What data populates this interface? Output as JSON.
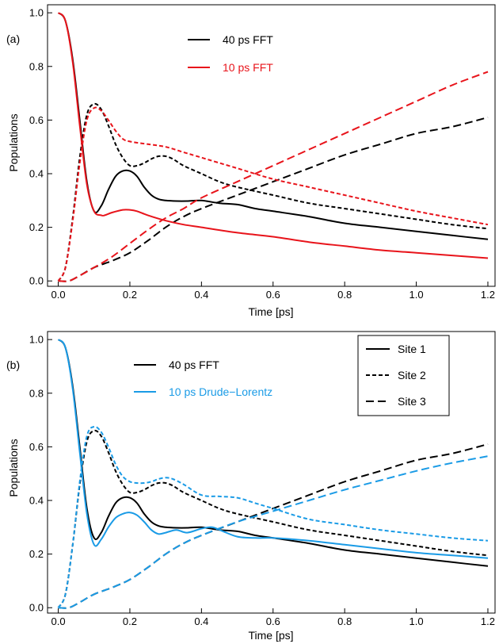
{
  "chart_data": [
    {
      "type": "line",
      "panel_label": "(a)",
      "xlabel": "Time [ps]",
      "ylabel": "Populations",
      "xlim": [
        -0.03,
        1.22
      ],
      "ylim": [
        -0.02,
        1.03
      ],
      "xticks": [
        0.0,
        0.2,
        0.4,
        0.6,
        0.8,
        1.0,
        1.2
      ],
      "yticks": [
        0.0,
        0.2,
        0.4,
        0.6,
        0.8,
        1.0
      ],
      "grid": false,
      "legend": {
        "placement": "top-center",
        "entries": [
          {
            "label": "40 ps FFT",
            "color": "#000000"
          },
          {
            "label": "10 ps FFT",
            "color": "#e8141b"
          }
        ]
      },
      "series": [
        {
          "name": "40 ps FFT",
          "site": "Site 1",
          "color": "#000000",
          "dash": "solid",
          "x": [
            0,
            0.02,
            0.04,
            0.06,
            0.08,
            0.1,
            0.12,
            0.14,
            0.16,
            0.18,
            0.2,
            0.22,
            0.24,
            0.26,
            0.28,
            0.3,
            0.33,
            0.36,
            0.4,
            0.45,
            0.5,
            0.55,
            0.6,
            0.7,
            0.8,
            0.9,
            1.0,
            1.1,
            1.2
          ],
          "y": [
            1.0,
            0.97,
            0.83,
            0.6,
            0.37,
            0.26,
            0.28,
            0.34,
            0.39,
            0.41,
            0.41,
            0.39,
            0.35,
            0.32,
            0.305,
            0.3,
            0.298,
            0.298,
            0.3,
            0.29,
            0.285,
            0.27,
            0.26,
            0.24,
            0.215,
            0.2,
            0.185,
            0.17,
            0.155
          ]
        },
        {
          "name": "40 ps FFT",
          "site": "Site 2",
          "color": "#000000",
          "dash": "short",
          "x": [
            0,
            0.02,
            0.04,
            0.06,
            0.08,
            0.1,
            0.12,
            0.14,
            0.16,
            0.18,
            0.2,
            0.22,
            0.24,
            0.26,
            0.28,
            0.3,
            0.32,
            0.35,
            0.4,
            0.45,
            0.5,
            0.6,
            0.7,
            0.8,
            0.9,
            1.0,
            1.1,
            1.2
          ],
          "y": [
            0.0,
            0.05,
            0.23,
            0.46,
            0.62,
            0.66,
            0.64,
            0.58,
            0.51,
            0.46,
            0.43,
            0.43,
            0.44,
            0.455,
            0.465,
            0.465,
            0.455,
            0.43,
            0.4,
            0.37,
            0.35,
            0.32,
            0.29,
            0.27,
            0.25,
            0.23,
            0.21,
            0.195
          ]
        },
        {
          "name": "40 ps FFT",
          "site": "Site 3",
          "color": "#000000",
          "dash": "long",
          "x": [
            0,
            0.03,
            0.06,
            0.1,
            0.15,
            0.2,
            0.25,
            0.3,
            0.35,
            0.4,
            0.5,
            0.6,
            0.7,
            0.8,
            0.9,
            1.0,
            1.1,
            1.2
          ],
          "y": [
            0.0,
            0.0,
            0.02,
            0.05,
            0.075,
            0.105,
            0.15,
            0.2,
            0.24,
            0.27,
            0.32,
            0.37,
            0.42,
            0.47,
            0.51,
            0.55,
            0.575,
            0.61
          ]
        },
        {
          "name": "10 ps FFT",
          "site": "Site 1",
          "color": "#e8141b",
          "dash": "solid",
          "x": [
            0,
            0.02,
            0.04,
            0.06,
            0.08,
            0.1,
            0.12,
            0.13,
            0.15,
            0.18,
            0.2,
            0.22,
            0.25,
            0.3,
            0.35,
            0.4,
            0.5,
            0.6,
            0.7,
            0.8,
            0.9,
            1.0,
            1.1,
            1.2
          ],
          "y": [
            1.0,
            0.97,
            0.82,
            0.58,
            0.36,
            0.26,
            0.245,
            0.245,
            0.255,
            0.265,
            0.265,
            0.26,
            0.245,
            0.225,
            0.21,
            0.2,
            0.18,
            0.165,
            0.145,
            0.13,
            0.115,
            0.105,
            0.095,
            0.085
          ]
        },
        {
          "name": "10 ps FFT",
          "site": "Site 2",
          "color": "#e8141b",
          "dash": "short",
          "x": [
            0,
            0.02,
            0.04,
            0.06,
            0.08,
            0.1,
            0.12,
            0.14,
            0.16,
            0.18,
            0.2,
            0.25,
            0.3,
            0.35,
            0.4,
            0.5,
            0.6,
            0.7,
            0.8,
            0.9,
            1.0,
            1.1,
            1.2
          ],
          "y": [
            0.0,
            0.05,
            0.22,
            0.44,
            0.6,
            0.645,
            0.635,
            0.6,
            0.56,
            0.53,
            0.52,
            0.51,
            0.5,
            0.48,
            0.46,
            0.42,
            0.38,
            0.35,
            0.32,
            0.29,
            0.26,
            0.235,
            0.21
          ]
        },
        {
          "name": "10 ps FFT",
          "site": "Site 3",
          "color": "#e8141b",
          "dash": "long",
          "x": [
            0,
            0.03,
            0.06,
            0.1,
            0.15,
            0.2,
            0.25,
            0.3,
            0.35,
            0.4,
            0.5,
            0.6,
            0.7,
            0.8,
            0.9,
            1.0,
            1.1,
            1.2
          ],
          "y": [
            0.0,
            0.0,
            0.02,
            0.05,
            0.09,
            0.14,
            0.19,
            0.235,
            0.27,
            0.31,
            0.37,
            0.43,
            0.49,
            0.55,
            0.61,
            0.67,
            0.73,
            0.78
          ]
        }
      ]
    },
    {
      "type": "line",
      "panel_label": "(b)",
      "xlabel": "Time [ps]",
      "ylabel": "Populations",
      "xlim": [
        -0.03,
        1.22
      ],
      "ylim": [
        -0.02,
        1.03
      ],
      "xticks": [
        0.0,
        0.2,
        0.4,
        0.6,
        0.8,
        1.0,
        1.2
      ],
      "yticks": [
        0.0,
        0.2,
        0.4,
        0.6,
        0.8,
        1.0
      ],
      "grid": false,
      "legend": {
        "placement": "top-center",
        "entries": [
          {
            "label": "40 ps FFT",
            "color": "#000000"
          },
          {
            "label": "10 ps Drude−Lorentz",
            "color": "#1a9be6"
          }
        ]
      },
      "site_legend": {
        "placement": "top-right",
        "entries": [
          {
            "label": "Site 1",
            "dash": "solid"
          },
          {
            "label": "Site 2",
            "dash": "short"
          },
          {
            "label": "Site 3",
            "dash": "long"
          }
        ]
      },
      "series": [
        {
          "name": "40 ps FFT",
          "site": "Site 1",
          "color": "#000000",
          "dash": "solid",
          "x": [
            0,
            0.02,
            0.04,
            0.06,
            0.08,
            0.1,
            0.12,
            0.14,
            0.16,
            0.18,
            0.2,
            0.22,
            0.24,
            0.26,
            0.28,
            0.3,
            0.33,
            0.36,
            0.4,
            0.45,
            0.5,
            0.55,
            0.6,
            0.7,
            0.8,
            0.9,
            1.0,
            1.1,
            1.2
          ],
          "y": [
            1.0,
            0.97,
            0.83,
            0.6,
            0.37,
            0.26,
            0.28,
            0.34,
            0.39,
            0.41,
            0.41,
            0.39,
            0.35,
            0.32,
            0.305,
            0.3,
            0.298,
            0.298,
            0.3,
            0.29,
            0.285,
            0.27,
            0.26,
            0.24,
            0.215,
            0.2,
            0.185,
            0.17,
            0.155
          ]
        },
        {
          "name": "40 ps FFT",
          "site": "Site 2",
          "color": "#000000",
          "dash": "short",
          "x": [
            0,
            0.02,
            0.04,
            0.06,
            0.08,
            0.1,
            0.12,
            0.14,
            0.16,
            0.18,
            0.2,
            0.22,
            0.24,
            0.26,
            0.28,
            0.3,
            0.32,
            0.35,
            0.4,
            0.45,
            0.5,
            0.6,
            0.7,
            0.8,
            0.9,
            1.0,
            1.1,
            1.2
          ],
          "y": [
            0.0,
            0.05,
            0.23,
            0.46,
            0.62,
            0.66,
            0.64,
            0.58,
            0.51,
            0.46,
            0.43,
            0.43,
            0.44,
            0.455,
            0.465,
            0.465,
            0.455,
            0.43,
            0.4,
            0.37,
            0.35,
            0.32,
            0.29,
            0.27,
            0.25,
            0.23,
            0.21,
            0.195
          ]
        },
        {
          "name": "40 ps FFT",
          "site": "Site 3",
          "color": "#000000",
          "dash": "long",
          "x": [
            0,
            0.03,
            0.06,
            0.1,
            0.15,
            0.2,
            0.25,
            0.3,
            0.35,
            0.4,
            0.5,
            0.6,
            0.7,
            0.8,
            0.9,
            1.0,
            1.1,
            1.2
          ],
          "y": [
            0.0,
            0.0,
            0.02,
            0.05,
            0.075,
            0.105,
            0.15,
            0.2,
            0.24,
            0.27,
            0.32,
            0.37,
            0.42,
            0.47,
            0.51,
            0.55,
            0.575,
            0.61
          ]
        },
        {
          "name": "10 ps Drude−Lorentz",
          "site": "Site 1",
          "color": "#1a9be6",
          "dash": "solid",
          "x": [
            0,
            0.02,
            0.04,
            0.06,
            0.08,
            0.1,
            0.12,
            0.14,
            0.16,
            0.18,
            0.2,
            0.22,
            0.24,
            0.26,
            0.28,
            0.3,
            0.33,
            0.36,
            0.4,
            0.43,
            0.46,
            0.5,
            0.55,
            0.6,
            0.7,
            0.8,
            0.9,
            1.0,
            1.1,
            1.2
          ],
          "y": [
            1.0,
            0.97,
            0.82,
            0.58,
            0.35,
            0.235,
            0.255,
            0.3,
            0.335,
            0.35,
            0.355,
            0.345,
            0.32,
            0.29,
            0.275,
            0.28,
            0.29,
            0.28,
            0.295,
            0.3,
            0.285,
            0.265,
            0.26,
            0.26,
            0.25,
            0.235,
            0.22,
            0.205,
            0.195,
            0.185
          ]
        },
        {
          "name": "10 ps Drude−Lorentz",
          "site": "Site 2",
          "color": "#1a9be6",
          "dash": "short",
          "x": [
            0,
            0.02,
            0.04,
            0.06,
            0.08,
            0.1,
            0.12,
            0.14,
            0.16,
            0.18,
            0.2,
            0.22,
            0.24,
            0.26,
            0.28,
            0.3,
            0.32,
            0.35,
            0.4,
            0.45,
            0.5,
            0.55,
            0.6,
            0.7,
            0.8,
            0.9,
            1.0,
            1.1,
            1.2
          ],
          "y": [
            0.0,
            0.05,
            0.23,
            0.47,
            0.64,
            0.675,
            0.655,
            0.6,
            0.535,
            0.49,
            0.47,
            0.465,
            0.465,
            0.47,
            0.48,
            0.485,
            0.48,
            0.46,
            0.42,
            0.415,
            0.41,
            0.39,
            0.37,
            0.33,
            0.31,
            0.29,
            0.275,
            0.26,
            0.25
          ]
        },
        {
          "name": "10 ps Drude−Lorentz",
          "site": "Site 3",
          "color": "#1a9be6",
          "dash": "long",
          "x": [
            0,
            0.03,
            0.06,
            0.1,
            0.15,
            0.2,
            0.25,
            0.3,
            0.35,
            0.4,
            0.5,
            0.6,
            0.7,
            0.8,
            0.9,
            1.0,
            1.1,
            1.2
          ],
          "y": [
            0.0,
            0.0,
            0.02,
            0.05,
            0.075,
            0.105,
            0.15,
            0.2,
            0.24,
            0.27,
            0.32,
            0.36,
            0.4,
            0.44,
            0.475,
            0.51,
            0.54,
            0.565
          ]
        }
      ]
    }
  ]
}
